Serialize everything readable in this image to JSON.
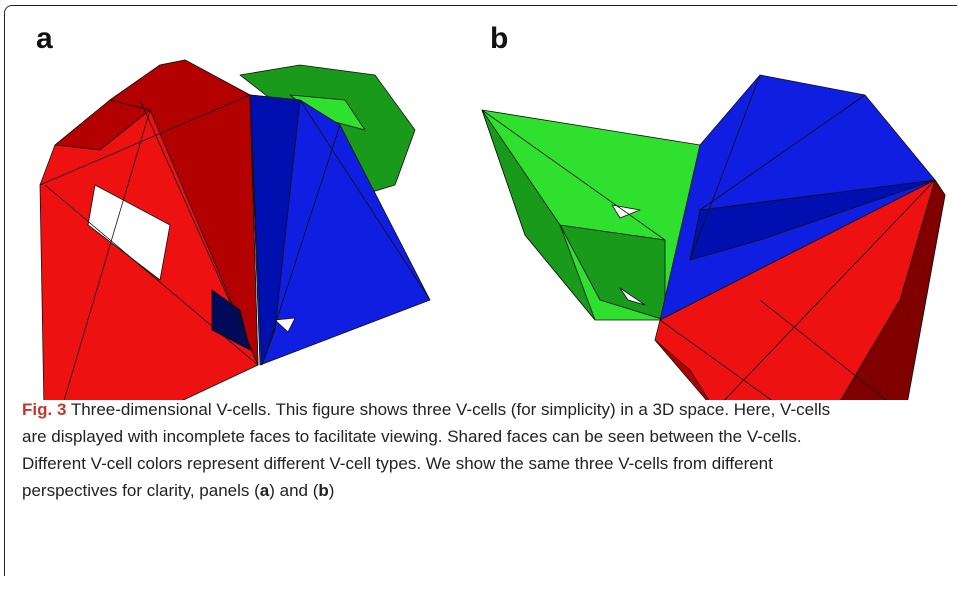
{
  "panels": {
    "a": "a",
    "b": "b"
  },
  "caption": {
    "label": "Fig. 3",
    "lines": [
      "Three-dimensional V-cells. This figure shows three V-cells (for simplicity) in a 3D space. Here, V-cells",
      "are displayed with incomplete faces to facilitate viewing. Shared faces can be seen between the V-cells.",
      "Different V-cell colors represent different V-cell types. We show the same three V-cells from different"
    ],
    "last": [
      "perspectives for clarity, panels (",
      "a",
      ") and (",
      "b",
      ")"
    ]
  }
}
